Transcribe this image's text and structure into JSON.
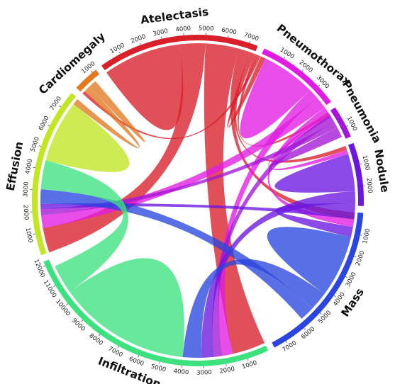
{
  "diagram": {
    "type": "chord",
    "groups": [
      {
        "id": "atelectasis",
        "name": "Atelectasis",
        "color": "#d81f2a",
        "total": 7400,
        "ticks": [
          1000,
          2000,
          3000,
          4000,
          5000,
          6000,
          7000
        ]
      },
      {
        "id": "pneumothorax",
        "name": "Pneumothorax",
        "color": "#e21be3",
        "total": 3900,
        "ticks": [
          1000,
          2000,
          3000
        ]
      },
      {
        "id": "pneumonia",
        "name": "Pneumonia",
        "color": "#a416d6",
        "total": 1500,
        "ticks": [
          1000
        ]
      },
      {
        "id": "nodule",
        "name": "Nodule",
        "color": "#6a17e0",
        "total": 2900,
        "ticks": [
          1000,
          2000
        ]
      },
      {
        "id": "mass",
        "name": "Mass",
        "color": "#2a46de",
        "total": 7600,
        "ticks": [
          1000,
          2000,
          3000,
          4000,
          5000,
          6000,
          7000
        ]
      },
      {
        "id": "infiltration",
        "name": "Infiltration",
        "color": "#3de27f",
        "total": 12200,
        "ticks": [
          1000,
          2000,
          3000,
          4000,
          5000,
          6000,
          7000,
          8000,
          9000,
          10000,
          11000,
          12000
        ]
      },
      {
        "id": "effusion",
        "name": "Effusion",
        "color": "#c2e623",
        "total": 7800,
        "ticks": [
          1000,
          2000,
          3000,
          4000,
          5000,
          6000,
          7000
        ]
      },
      {
        "id": "cardiomegaly",
        "name": "Cardiomegaly",
        "color": "#e27a22",
        "total": 1200,
        "ticks": [
          1000
        ]
      }
    ],
    "ribbons": [
      {
        "source": "atelectasis",
        "target": "atelectasis",
        "value": 1900
      },
      {
        "source": "atelectasis",
        "target": "effusion",
        "value": 1200
      },
      {
        "source": "atelectasis",
        "target": "infiltration",
        "value": 1600
      },
      {
        "source": "atelectasis",
        "target": "mass",
        "value": 350
      },
      {
        "source": "atelectasis",
        "target": "nodule",
        "value": 200
      },
      {
        "source": "atelectasis",
        "target": "pneumothorax",
        "value": 250
      },
      {
        "source": "atelectasis",
        "target": "pneumonia",
        "value": 150
      },
      {
        "source": "atelectasis",
        "target": "cardiomegaly",
        "value": 150
      },
      {
        "source": "pneumothorax",
        "target": "pneumothorax",
        "value": 1300
      },
      {
        "source": "pneumothorax",
        "target": "infiltration",
        "value": 500
      },
      {
        "source": "pneumothorax",
        "target": "effusion",
        "value": 600
      },
      {
        "source": "pneumothorax",
        "target": "mass",
        "value": 350
      },
      {
        "source": "pneumothorax",
        "target": "nodule",
        "value": 200
      },
      {
        "source": "pneumonia",
        "target": "infiltration",
        "value": 400
      },
      {
        "source": "pneumonia",
        "target": "effusion",
        "value": 300
      },
      {
        "source": "pneumonia",
        "target": "pneumonia",
        "value": 250
      },
      {
        "source": "nodule",
        "target": "nodule",
        "value": 900
      },
      {
        "source": "nodule",
        "target": "infiltration",
        "value": 600
      },
      {
        "source": "nodule",
        "target": "mass",
        "value": 500
      },
      {
        "source": "nodule",
        "target": "effusion",
        "value": 250
      },
      {
        "source": "mass",
        "target": "mass",
        "value": 1500
      },
      {
        "source": "mass",
        "target": "infiltration",
        "value": 900
      },
      {
        "source": "mass",
        "target": "effusion",
        "value": 700
      },
      {
        "source": "infiltration",
        "target": "infiltration",
        "value": 3200
      },
      {
        "source": "infiltration",
        "target": "effusion",
        "value": 1400
      },
      {
        "source": "effusion",
        "target": "effusion",
        "value": 1500
      },
      {
        "source": "cardiomegaly",
        "target": "effusion",
        "value": 300
      },
      {
        "source": "cardiomegaly",
        "target": "cardiomegaly",
        "value": 200
      }
    ]
  }
}
